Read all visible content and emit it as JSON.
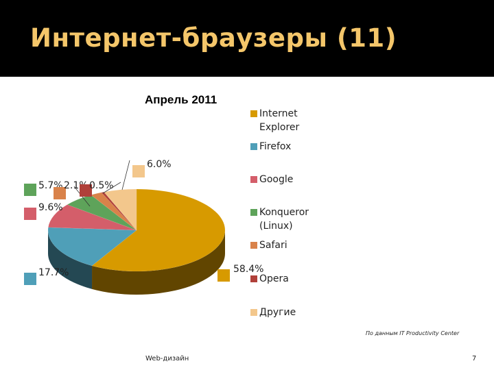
{
  "slide": {
    "title": "Интернет-браузеры (11)",
    "source_note": "По данным IT Productivity Center",
    "footer_left": "Web-дизайн",
    "page_number": "7"
  },
  "chart_data": {
    "type": "pie",
    "title": "Апрель 2011",
    "legend_position": "right",
    "slices": [
      {
        "name": "Internet Explorer",
        "value": 58.4,
        "label": "58.4%",
        "color": "#d79a00"
      },
      {
        "name": "Firefox",
        "value": 17.7,
        "label": "17.7%",
        "color": "#4f9fb8"
      },
      {
        "name": "Google",
        "value": 9.6,
        "label": "9.6%",
        "color": "#d45e6a"
      },
      {
        "name": "Konqueror (Linux)",
        "value": 5.7,
        "label": "5.7%",
        "color": "#5ea35a"
      },
      {
        "name": "Safari",
        "value": 2.1,
        "label": "2.1%",
        "color": "#d9824a"
      },
      {
        "name": "Opera",
        "value": 0.5,
        "label": "0.5%",
        "color": "#b0403a"
      },
      {
        "name": "Другие",
        "value": 6.0,
        "label": "6.0%",
        "color": "#f3c78c"
      }
    ]
  }
}
